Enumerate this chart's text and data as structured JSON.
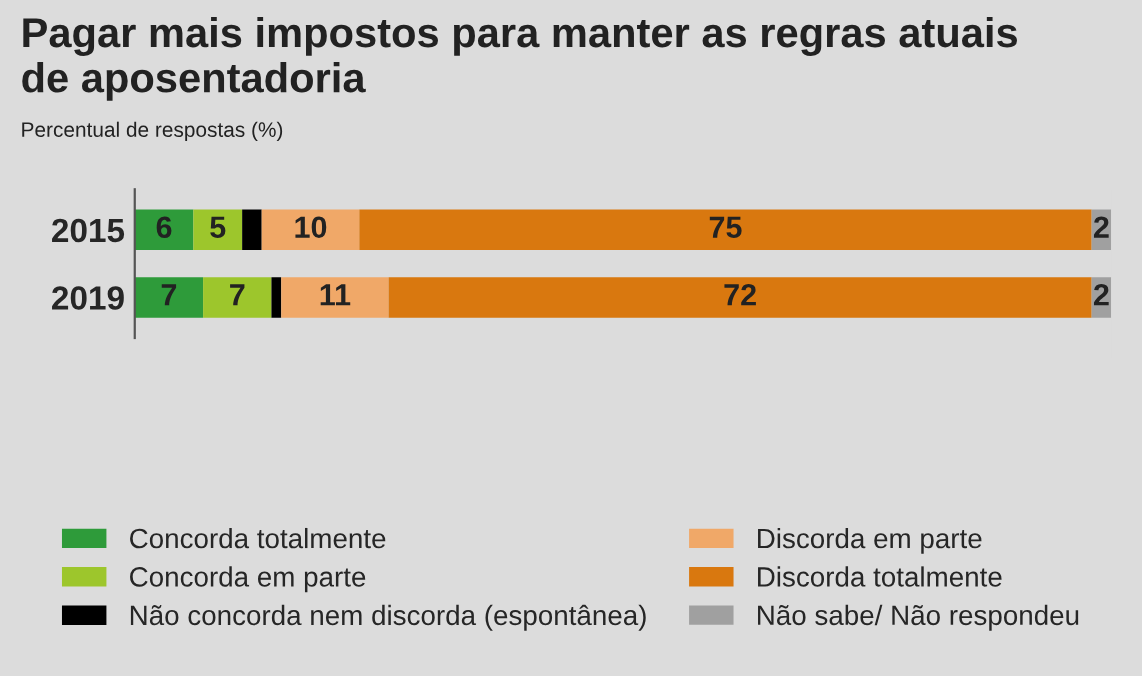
{
  "chart_data": {
    "type": "bar",
    "title": "Pagar mais impostos para manter as regras atuais\nde aposentadoria",
    "subtitle": "Percentual de respostas (%)",
    "orientation": "horizontal",
    "stacked": true,
    "categories": [
      "2015",
      "2019"
    ],
    "series": [
      {
        "name": "Concorda totalmente",
        "color": "#2e9b3a",
        "values": [
          6,
          7
        ],
        "value_labels": [
          "6",
          "7"
        ]
      },
      {
        "name": "Concorda em parte",
        "color": "#9dc62c",
        "values": [
          5,
          7
        ],
        "value_labels": [
          "5",
          "7"
        ]
      },
      {
        "name": "Não concorda nem discorda (espontânea)",
        "color": "#000000",
        "values": [
          2,
          1
        ],
        "value_labels": [
          null,
          null
        ]
      },
      {
        "name": "Discorda em parte",
        "color": "#f0a868",
        "values": [
          10,
          11
        ],
        "value_labels": [
          "10",
          "11"
        ]
      },
      {
        "name": "Discorda totalmente",
        "color": "#d9780f",
        "values": [
          75,
          72
        ],
        "value_labels": [
          "75",
          "72"
        ]
      },
      {
        "name": "Não sabe/ Não respondeu",
        "color": "#a0a0a0",
        "values": [
          2,
          2
        ],
        "value_labels": [
          "2",
          "2"
        ]
      }
    ],
    "legend": "bottom",
    "tick_labels": "y",
    "grid": false
  }
}
